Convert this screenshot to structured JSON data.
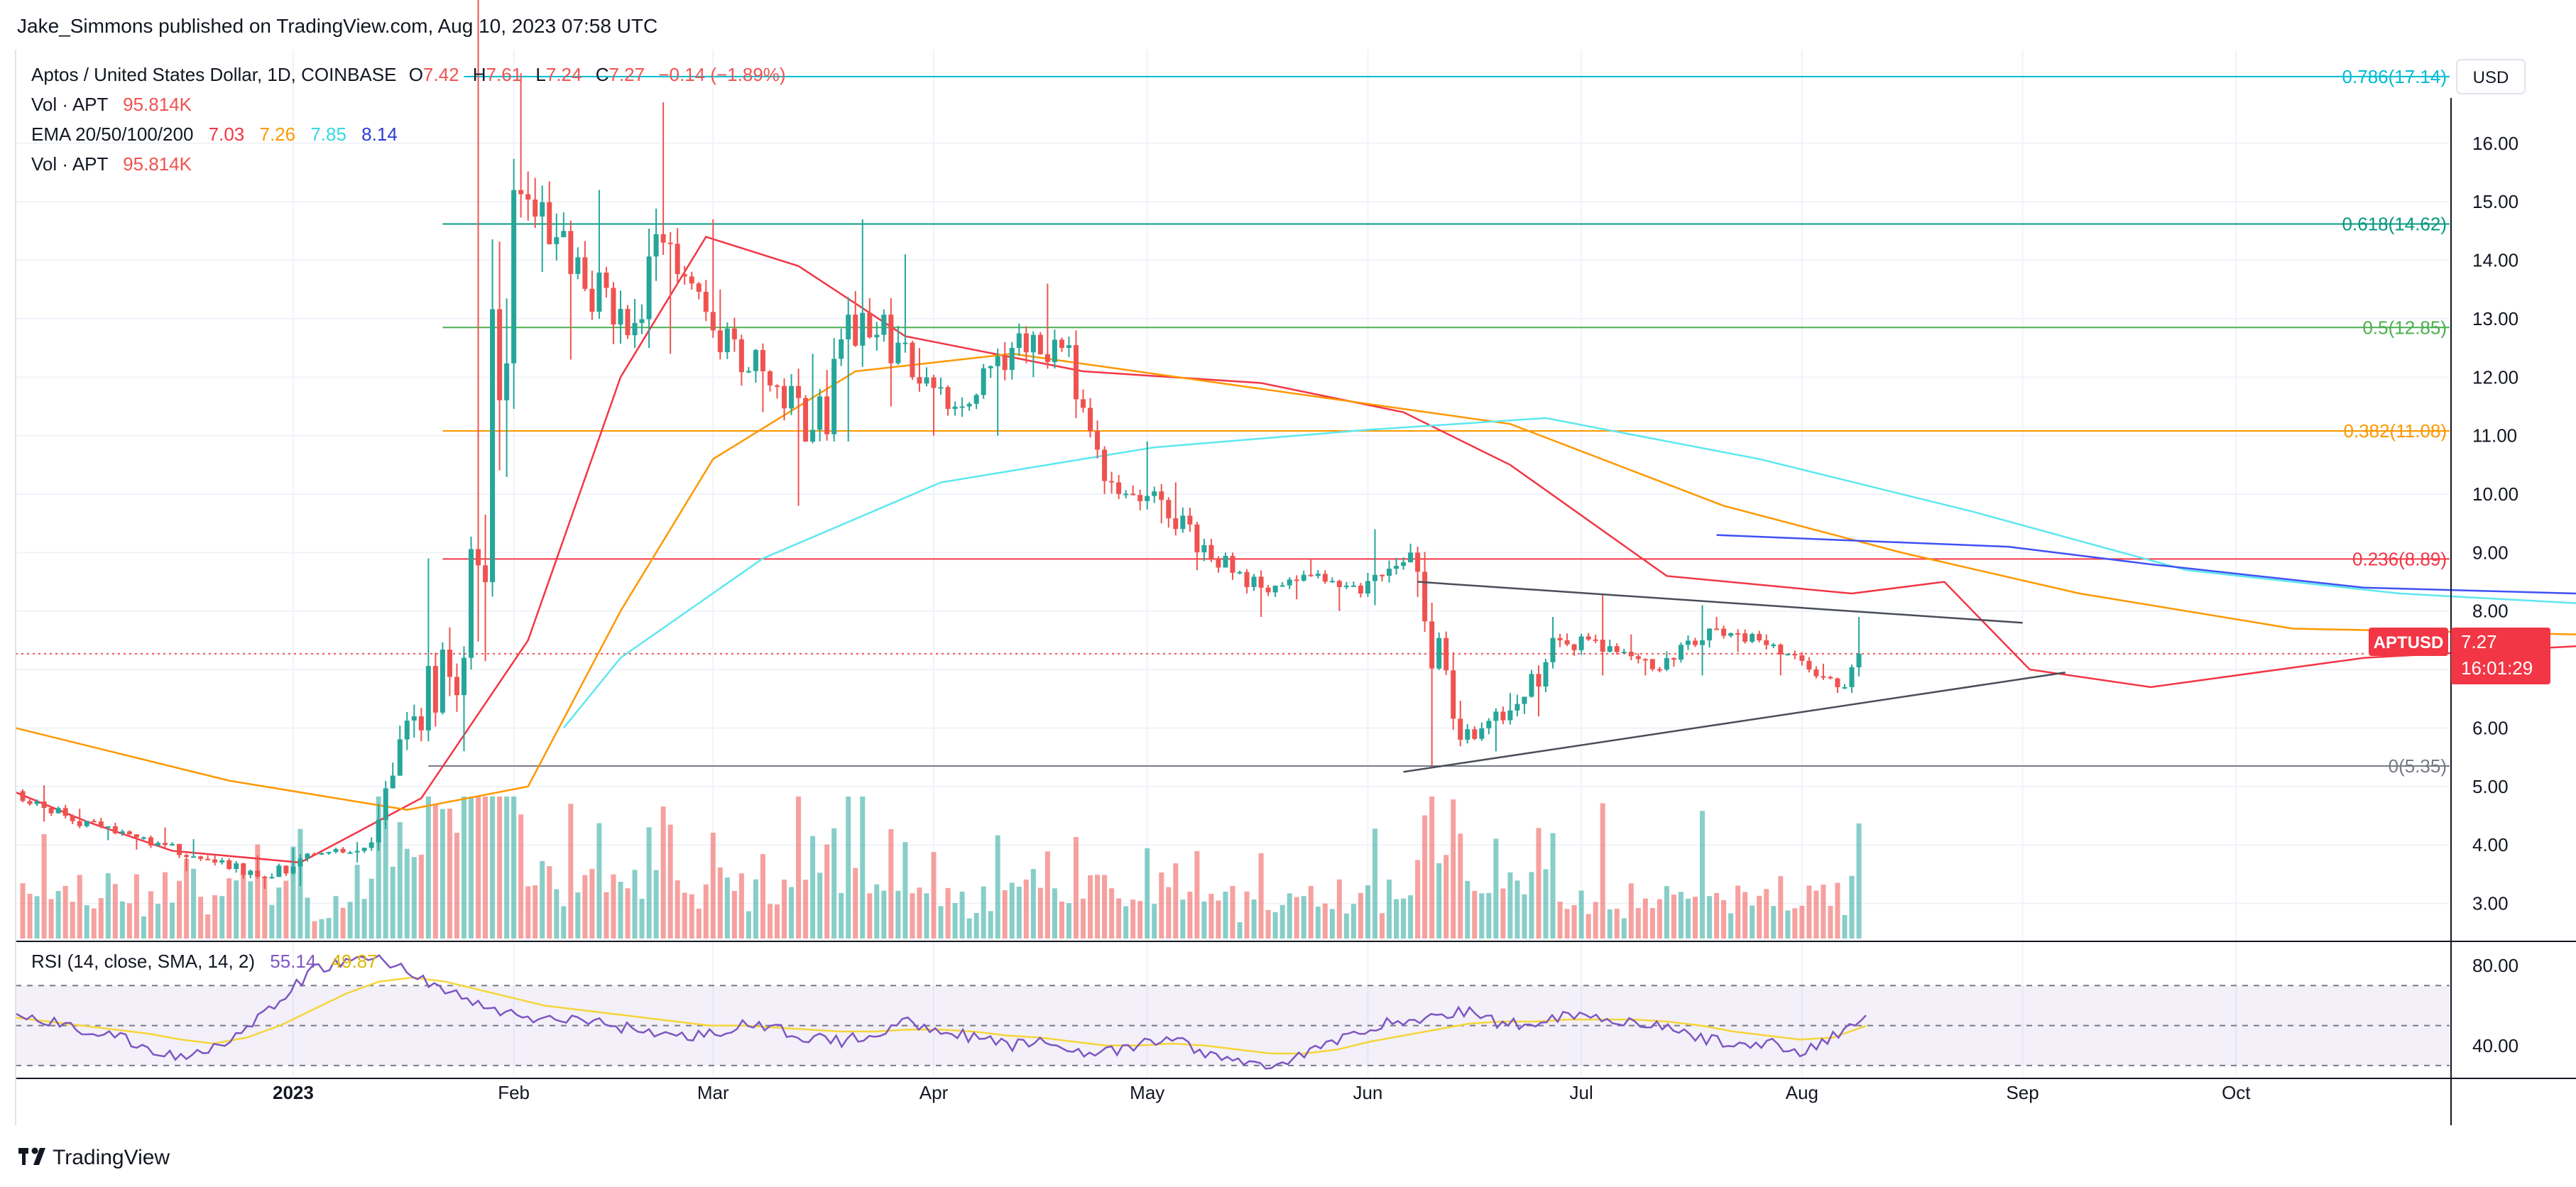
{
  "header": {
    "publisher": "Jake_Simmons published on TradingView.com, Aug 10, 2023 07:58 UTC"
  },
  "legend": {
    "symbol": "Aptos / United States Dollar, 1D, COINBASE",
    "o_label": "O",
    "o": "7.42",
    "h_label": "H",
    "h": "7.61",
    "l_label": "L",
    "l": "7.24",
    "c_label": "C",
    "c": "7.27",
    "change": "−0.14 (−1.89%)",
    "vol_label": "Vol · APT",
    "vol": "95.814K",
    "ema_label": "EMA 20/50/100/200",
    "ema20": "7.03",
    "ema50": "7.26",
    "ema100": "7.85",
    "ema200": "8.14",
    "vol2_label": "Vol · APT",
    "vol2": "95.814K"
  },
  "price_tag": {
    "symbol": "APTUSD",
    "price": "7.27",
    "countdown": "16:01:29"
  },
  "currency": "USD",
  "rsi_legend": {
    "label": "RSI (14, close, SMA, 14, 2)",
    "rsi": "55.14",
    "sma": "49.87"
  },
  "footer": {
    "brand": "TradingView"
  },
  "colors": {
    "up": "#26a69a",
    "down": "#ef5350",
    "ema20": "#f23645",
    "ema50": "#ff9800",
    "ema100": "#5ee7f0",
    "ema200": "#3f51f5",
    "rsi": "#7e57c2",
    "rsi_sma": "#f5d53a",
    "fib0786": "#00bcd4",
    "fib0618": "#089981",
    "fib05": "#4caf50",
    "fib0382": "#ff9800",
    "fib0236": "#f23645",
    "fib0": "#787b86"
  },
  "chart_data": [
    {
      "type": "candlestick",
      "title": "Aptos / United States Dollar, 1D, COINBASE",
      "x_axis": {
        "ticks": [
          "2023",
          "Feb",
          "Mar",
          "Apr",
          "May",
          "Jun",
          "Jul",
          "Aug",
          "Sep",
          "Oct"
        ],
        "tick_dates": [
          "2023-01-01",
          "2023-02-01",
          "2023-03-01",
          "2023-04-01",
          "2023-05-01",
          "2023-06-01",
          "2023-07-01",
          "2023-08-01",
          "2023-09-01",
          "2023-10-01"
        ],
        "range": [
          "2022-11-23",
          "2023-10-31"
        ]
      },
      "y_axis": {
        "unit": "USD",
        "range": [
          2.4,
          17.6
        ],
        "ticks": [
          3.0,
          4.0,
          5.0,
          6.0,
          7.0,
          8.0,
          9.0,
          10.0,
          11.0,
          12.0,
          13.0,
          14.0,
          15.0,
          16.0
        ]
      },
      "last_price": 7.27,
      "ohlc_weekly_approx": [
        [
          "2022-11-24",
          4.92,
          5.02,
          4.4,
          4.5
        ],
        [
          "2022-12-01",
          4.5,
          4.62,
          4.08,
          4.2
        ],
        [
          "2022-12-08",
          4.2,
          4.3,
          3.92,
          4.0
        ],
        [
          "2022-12-15",
          4.0,
          4.1,
          3.55,
          3.7
        ],
        [
          "2022-12-22",
          3.7,
          3.82,
          3.25,
          3.45
        ],
        [
          "2022-12-29",
          3.45,
          3.95,
          3.3,
          3.85
        ],
        [
          "2023-01-05",
          3.85,
          4.05,
          3.7,
          3.95
        ],
        [
          "2023-01-12",
          3.95,
          6.4,
          3.9,
          6.2
        ],
        [
          "2023-01-19",
          6.2,
          8.9,
          5.6,
          7.2
        ],
        [
          "2023-01-26",
          7.2,
          19.9,
          7.0,
          15.2
        ],
        [
          "2023-02-02",
          15.2,
          17.2,
          13.8,
          14.5
        ],
        [
          "2023-02-09",
          14.5,
          15.2,
          12.3,
          12.9
        ],
        [
          "2023-02-16",
          12.9,
          16.7,
          12.5,
          14.3
        ],
        [
          "2023-02-23",
          14.3,
          14.7,
          12.4,
          12.8
        ],
        [
          "2023-03-02",
          12.8,
          13.5,
          11.4,
          12.1
        ],
        [
          "2023-03-09",
          12.1,
          12.4,
          9.8,
          11.1
        ],
        [
          "2023-03-16",
          11.1,
          14.7,
          10.9,
          13.1
        ],
        [
          "2023-03-23",
          13.1,
          14.1,
          11.5,
          12.0
        ],
        [
          "2023-03-30",
          12.0,
          12.5,
          11.0,
          11.5
        ],
        [
          "2023-04-06",
          11.5,
          12.6,
          11.0,
          12.5
        ],
        [
          "2023-04-13",
          12.5,
          13.6,
          12.0,
          12.5
        ],
        [
          "2023-04-20",
          12.5,
          12.8,
          10.0,
          10.2
        ],
        [
          "2023-04-27",
          10.2,
          10.9,
          9.5,
          9.9
        ],
        [
          "2023-05-04",
          9.9,
          10.2,
          8.7,
          8.9
        ],
        [
          "2023-05-11",
          8.9,
          9.0,
          7.9,
          8.4
        ],
        [
          "2023-05-18",
          8.4,
          8.9,
          8.2,
          8.6
        ],
        [
          "2023-05-25",
          8.6,
          8.7,
          8.0,
          8.3
        ],
        [
          "2023-06-01",
          8.3,
          9.4,
          8.1,
          9.0
        ],
        [
          "2023-06-08",
          9.0,
          9.1,
          5.35,
          5.8
        ],
        [
          "2023-06-15",
          5.8,
          6.6,
          5.6,
          6.3
        ],
        [
          "2023-06-22",
          6.3,
          7.9,
          6.2,
          7.5
        ],
        [
          "2023-06-29",
          7.5,
          8.3,
          6.9,
          7.4
        ],
        [
          "2023-07-06",
          7.4,
          7.6,
          6.9,
          7.0
        ],
        [
          "2023-07-13",
          7.0,
          8.1,
          6.9,
          7.7
        ],
        [
          "2023-07-20",
          7.7,
          7.9,
          7.3,
          7.5
        ],
        [
          "2023-07-27",
          7.5,
          7.6,
          6.9,
          7.0
        ],
        [
          "2023-08-03",
          7.0,
          7.1,
          6.6,
          6.7
        ],
        [
          "2023-08-08",
          6.7,
          7.9,
          6.6,
          7.27
        ]
      ],
      "ema_series_approx": {
        "EMA 20": [
          [
            0,
            4.9
          ],
          [
            10,
            4.4
          ],
          [
            22,
            3.9
          ],
          [
            40,
            3.7
          ],
          [
            57,
            4.8
          ],
          [
            72,
            7.5
          ],
          [
            85,
            12.0
          ],
          [
            97,
            14.4
          ],
          [
            110,
            13.9
          ],
          [
            125,
            12.7
          ],
          [
            150,
            12.1
          ],
          [
            175,
            11.9
          ],
          [
            195,
            11.4
          ],
          [
            210,
            10.5
          ],
          [
            232,
            8.6
          ],
          [
            258,
            8.3
          ],
          [
            271,
            8.5
          ],
          [
            283,
            7.0
          ],
          [
            300,
            6.7
          ],
          [
            330,
            7.2
          ],
          [
            360,
            7.4
          ],
          [
            383,
            7.1
          ],
          [
            395,
            7.03
          ]
        ],
        "EMA 50": [
          [
            0,
            6.0
          ],
          [
            30,
            5.1
          ],
          [
            55,
            4.6
          ],
          [
            72,
            5.0
          ],
          [
            85,
            8.0
          ],
          [
            98,
            10.6
          ],
          [
            118,
            12.1
          ],
          [
            140,
            12.4
          ],
          [
            175,
            11.8
          ],
          [
            210,
            11.2
          ],
          [
            240,
            9.8
          ],
          [
            265,
            9.0
          ],
          [
            290,
            8.3
          ],
          [
            320,
            7.7
          ],
          [
            360,
            7.6
          ],
          [
            395,
            7.26
          ]
        ],
        "EMA 100": [
          [
            77,
            6.0
          ],
          [
            85,
            7.2
          ],
          [
            105,
            8.9
          ],
          [
            130,
            10.2
          ],
          [
            160,
            10.8
          ],
          [
            190,
            11.1
          ],
          [
            215,
            11.3
          ],
          [
            245,
            10.6
          ],
          [
            275,
            9.7
          ],
          [
            305,
            8.7
          ],
          [
            335,
            8.3
          ],
          [
            365,
            8.1
          ],
          [
            395,
            7.85
          ]
        ],
        "EMA 200": [
          [
            239,
            9.3
          ],
          [
            280,
            9.1
          ],
          [
            300,
            8.8
          ],
          [
            330,
            8.4
          ],
          [
            360,
            8.3
          ],
          [
            395,
            8.14
          ]
        ]
      },
      "volume_series_approx": {
        "unit": "APT",
        "last": "95.814K"
      },
      "fibonacci": [
        {
          "label": "0.786(17.14)",
          "level": 0.786,
          "price": 17.14
        },
        {
          "label": "0.618(14.62)",
          "level": 0.618,
          "price": 14.62
        },
        {
          "label": "0.5(12.85)",
          "level": 0.5,
          "price": 12.85
        },
        {
          "label": "0.382(11.08)",
          "level": 0.382,
          "price": 11.08
        },
        {
          "label": "0.236(8.89)",
          "level": 0.236,
          "price": 8.89
        },
        {
          "label": "0(5.35)",
          "level": 0,
          "price": 5.35
        }
      ],
      "trendlines": [
        {
          "name": "triangle-upper",
          "from": [
            "2023-06-08",
            8.5
          ],
          "to": [
            "2023-09-01",
            7.8
          ]
        },
        {
          "name": "triangle-lower",
          "from": [
            "2023-06-06",
            5.25
          ],
          "to": [
            "2023-09-07",
            6.95
          ]
        }
      ]
    },
    {
      "type": "line",
      "title": "RSI (14, close, SMA, 14, 2)",
      "y_axis": {
        "range": [
          25,
          90
        ],
        "ticks": [
          40.0,
          80.0
        ],
        "bands": [
          30,
          50,
          70
        ]
      },
      "series": [
        {
          "name": "RSI",
          "values": [
            55,
            52,
            48,
            45,
            38,
            34,
            40,
            48,
            62,
            78,
            82,
            84,
            76,
            68,
            60,
            56,
            52,
            54,
            50,
            48,
            44,
            46,
            50,
            48,
            44,
            42,
            46,
            52,
            48,
            44,
            40,
            42,
            38,
            36,
            40,
            44,
            36,
            32,
            30,
            36,
            42,
            50,
            52,
            54,
            58,
            50,
            52,
            56,
            54,
            52,
            48,
            44,
            40,
            42,
            36,
            44,
            55.14
          ]
        },
        {
          "name": "SMA",
          "values": [
            54,
            52,
            50,
            48,
            46,
            43,
            41,
            44,
            50,
            58,
            66,
            72,
            74,
            72,
            68,
            64,
            60,
            58,
            56,
            54,
            52,
            50,
            50,
            49,
            48,
            47,
            47,
            48,
            48,
            47,
            45,
            44,
            42,
            40,
            40,
            41,
            40,
            38,
            36,
            36,
            38,
            42,
            45,
            48,
            51,
            52,
            52,
            53,
            53,
            53,
            52,
            50,
            47,
            45,
            43,
            44,
            49.87
          ]
        }
      ]
    }
  ]
}
